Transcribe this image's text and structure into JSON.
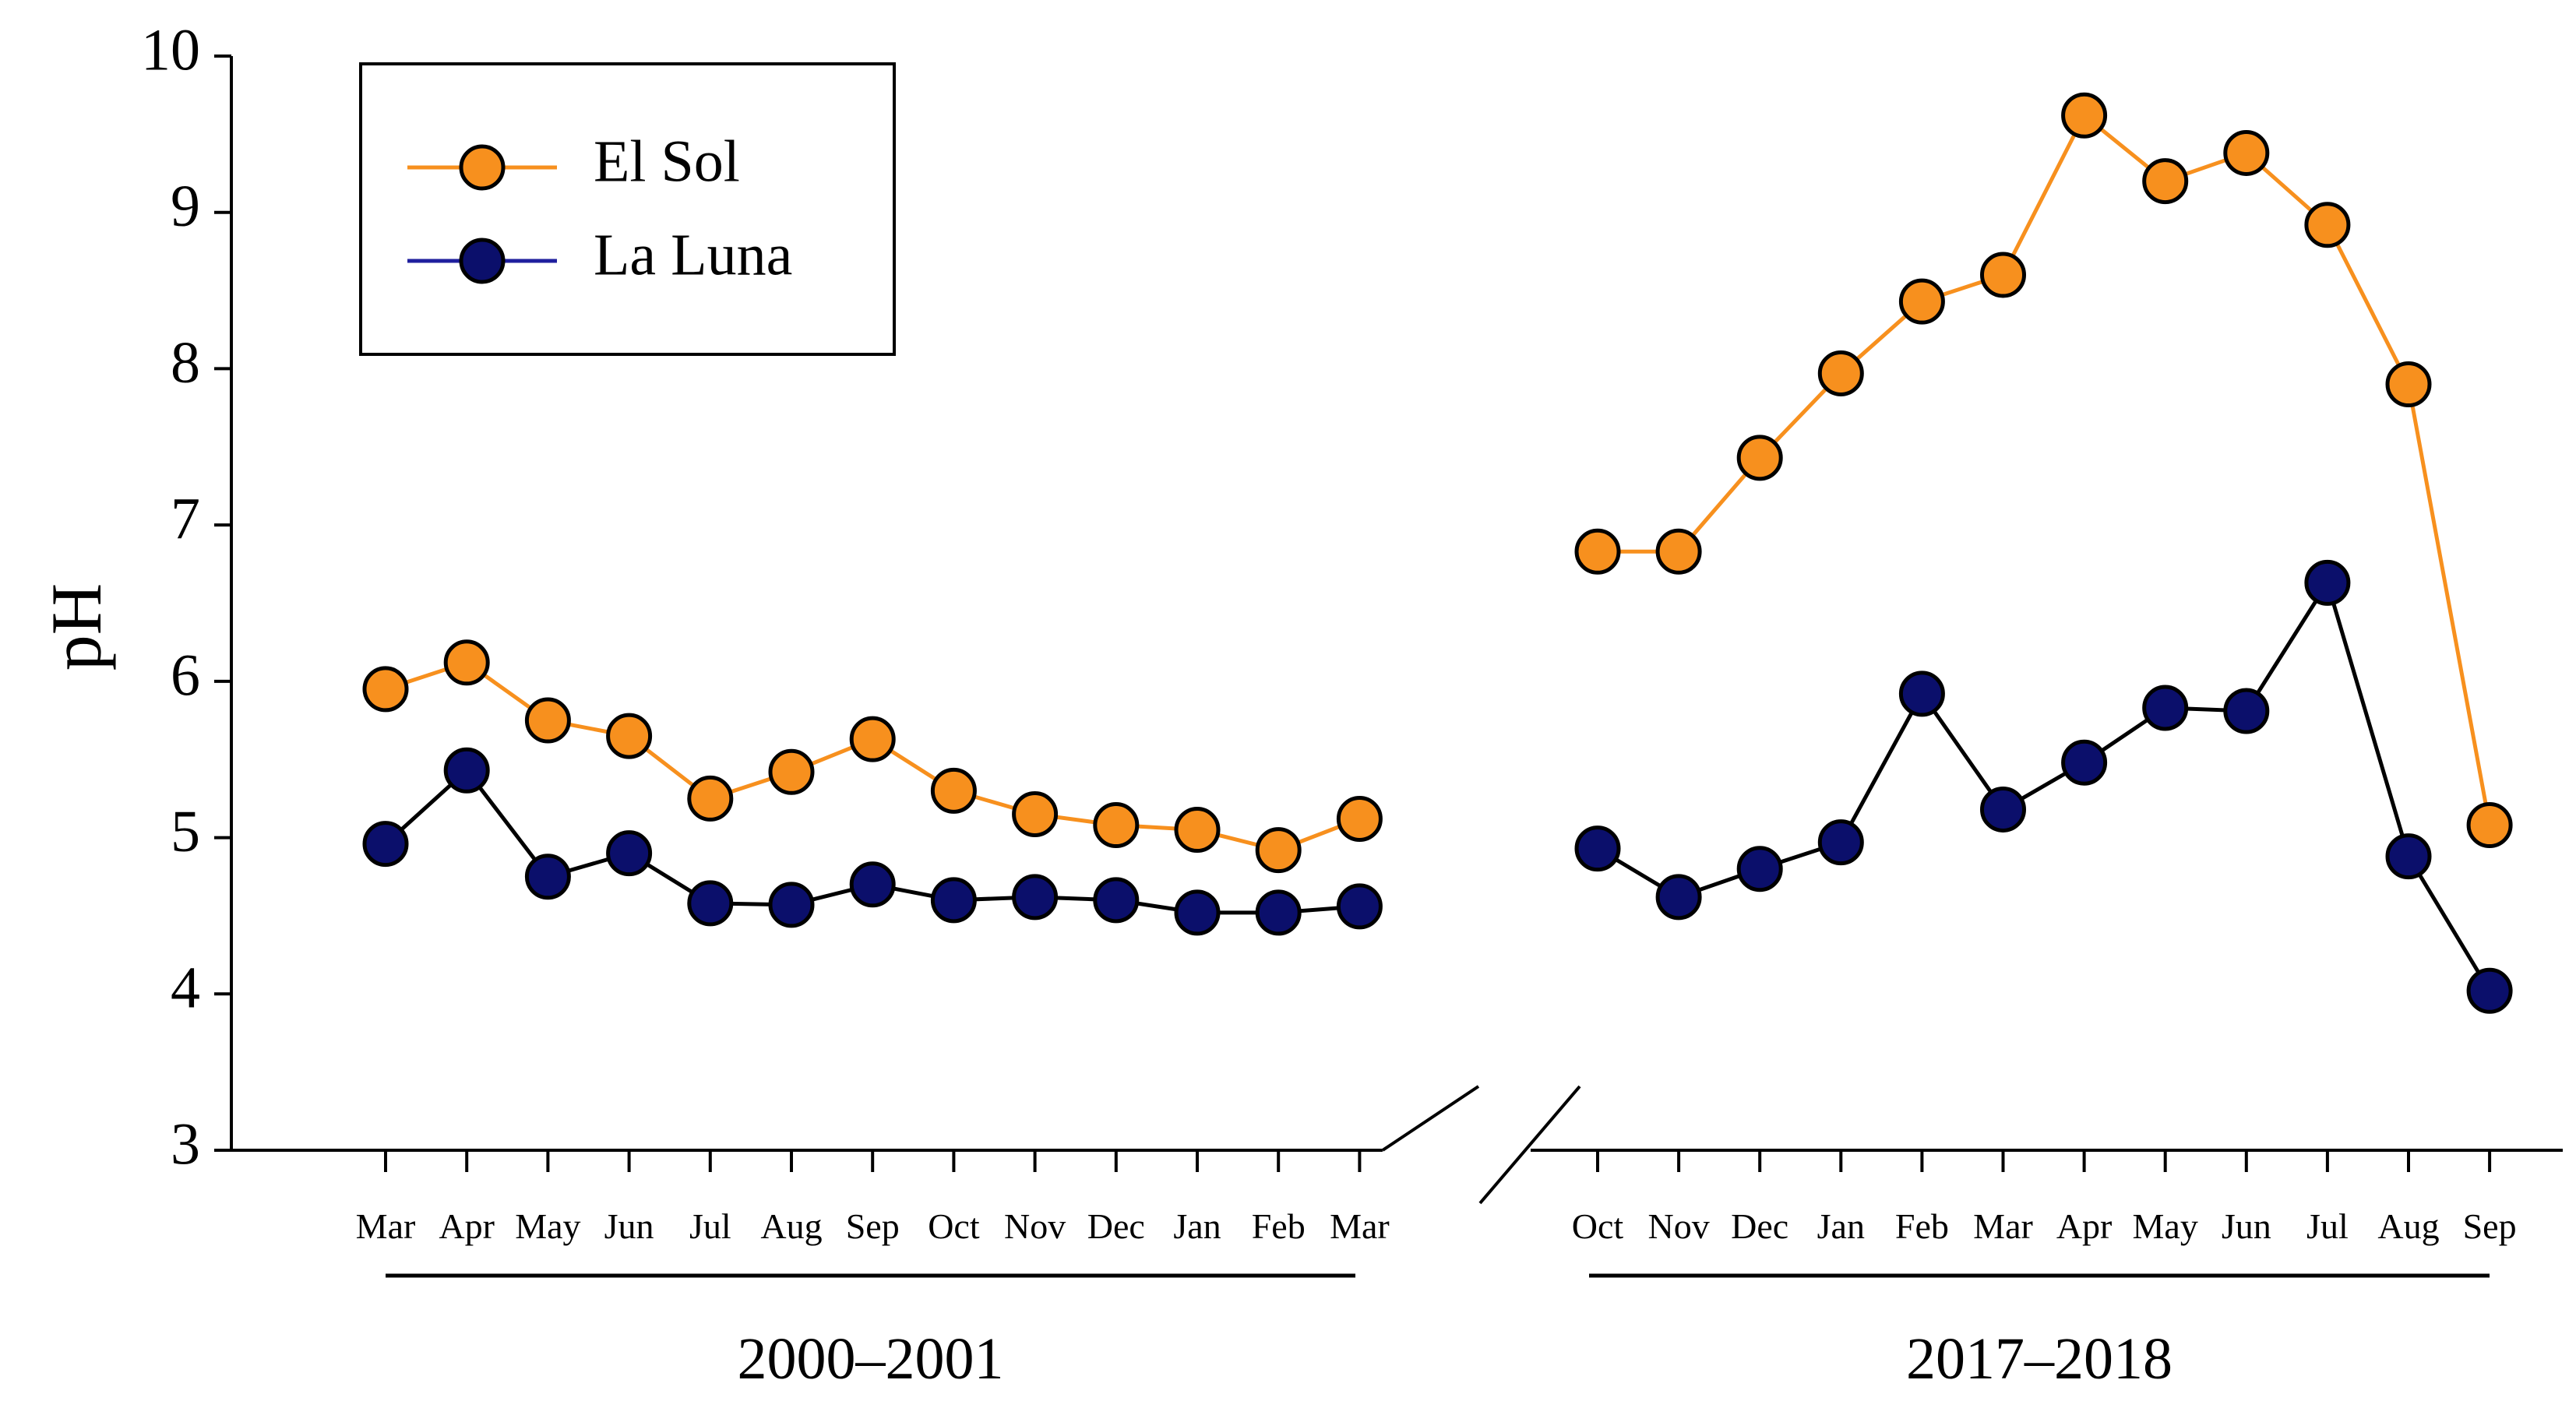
{
  "chart_data": {
    "type": "line",
    "ylabel": "pH",
    "ylim": [
      3,
      10
    ],
    "yticks": [
      "3",
      "4",
      "5",
      "6",
      "7",
      "8",
      "9",
      "10"
    ],
    "grid": false,
    "legend_position": "top-left",
    "axis_break": true,
    "colors": {
      "El Sol": "#f7901e",
      "La Luna": "#0b0f6b",
      "El Sol line": "#f7901e",
      "La Luna line": "#000000"
    },
    "groups": [
      {
        "label": "2000–2001",
        "categories": [
          "Mar",
          "Apr",
          "May",
          "Jun",
          "Jul",
          "Aug",
          "Sep",
          "Oct",
          "Nov",
          "Dec",
          "Jan",
          "Feb",
          "Mar"
        ],
        "series": [
          {
            "name": "El Sol",
            "values": [
              5.95,
              6.12,
              5.75,
              5.65,
              5.25,
              5.42,
              5.63,
              5.3,
              5.15,
              5.08,
              5.05,
              4.92,
              5.12
            ]
          },
          {
            "name": "La Luna",
            "values": [
              4.96,
              5.43,
              4.75,
              4.9,
              4.58,
              4.57,
              4.7,
              4.6,
              4.62,
              4.6,
              4.52,
              4.52,
              4.56
            ]
          }
        ]
      },
      {
        "label": "2017–2018",
        "categories": [
          "Oct",
          "Nov",
          "Dec",
          "Jan",
          "Feb",
          "Mar",
          "Apr",
          "May",
          "Jun",
          "Jul",
          "Aug",
          "Sep"
        ],
        "series": [
          {
            "name": "El Sol",
            "values": [
              6.83,
              6.83,
              7.43,
              7.97,
              8.43,
              8.6,
              9.62,
              9.2,
              9.38,
              8.92,
              7.9,
              5.08
            ]
          },
          {
            "name": "La Luna",
            "values": [
              4.93,
              4.62,
              4.8,
              4.97,
              5.92,
              5.18,
              5.48,
              5.83,
              5.81,
              6.63,
              4.88,
              4.02
            ]
          }
        ]
      }
    ],
    "legend": [
      {
        "name": "El Sol"
      },
      {
        "name": "La Luna"
      }
    ]
  }
}
